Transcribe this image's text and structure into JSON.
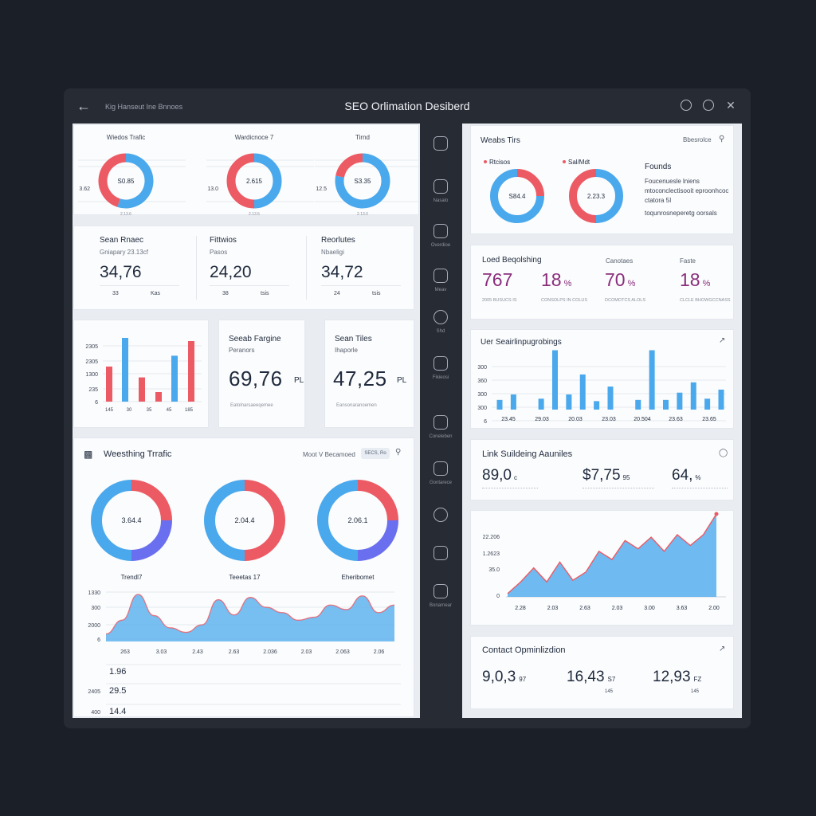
{
  "titlebar": {
    "breadcrumb": "Kig Hanseut Ine Bnnoes",
    "title": "SEO Orlimation Desiberd"
  },
  "colors": {
    "blue": "#4aa8ec",
    "red": "#ec5a64",
    "purple": "#6a6ff0",
    "magenta": "#8a2d7c"
  },
  "left": {
    "top_donuts": [
      {
        "label": "Wiedos Trafic",
        "center": "S0.85",
        "side": "3.62",
        "foot": "2.13.6",
        "blue": 0.55
      },
      {
        "label": "Wardicnoce 7",
        "center": "2.615",
        "side": "13.0",
        "foot": "2.13.5",
        "blue": 0.5
      },
      {
        "label": "Tirnd",
        "center": "S3.35",
        "side": "12.5",
        "foot": "2.13.0",
        "blue": 0.78
      }
    ],
    "metrics": [
      {
        "title": "Sean Rnaec",
        "sub": "Gniapary 23.13cf",
        "value": "34,76",
        "foot1": "33",
        "foot2": "Kas"
      },
      {
        "title": "Fittwios",
        "sub": "Pasos",
        "value": "24,20",
        "foot1": "38",
        "foot2": "tsis"
      },
      {
        "title": "Reorlutes",
        "sub": "Nbaeligi",
        "value": "34,72",
        "foot1": "24",
        "foot2": "tsis"
      }
    ],
    "bar_chart": {
      "y_ticks": [
        "2305",
        "2305",
        "1300",
        "235",
        "6"
      ],
      "x_ticks": [
        "145",
        "30",
        "35",
        "45",
        "185"
      ],
      "bars": [
        {
          "color": "red",
          "value": 0.55
        },
        {
          "color": "blue",
          "value": 1.0
        },
        {
          "color": "red",
          "value": 0.38
        },
        {
          "color": "red",
          "value": 0.15
        },
        {
          "color": "blue",
          "value": 0.72
        },
        {
          "color": "red",
          "value": 0.95
        }
      ]
    },
    "search_cards": [
      {
        "title": "Seeab Fargine",
        "sub": "Peranors",
        "value": "69,76",
        "unit": "PL",
        "foot": "Eatolnarsaeeqemee"
      },
      {
        "title": "Sean Tiles",
        "sub": "Ihaporle",
        "value": "47,25",
        "unit": "PL",
        "foot": "Eansonaranoemen"
      }
    ],
    "traffic": {
      "title": "Weesthing Trrafic",
      "filter_label": "Moot V Becamoed",
      "filter_value": "SECS, Ro",
      "donuts": [
        {
          "center": "3.64.4",
          "caption": "Trendl7"
        },
        {
          "center": "2.04.4",
          "caption": "Teeetas 17"
        },
        {
          "center": "2.06.1",
          "caption": "Eheribomet"
        }
      ],
      "area_y": [
        "1330",
        "300",
        "2000",
        "6"
      ],
      "area_x": [
        "263",
        "3.03",
        "2.43",
        "2.63",
        "2.036",
        "2.03",
        "2.063",
        "2.06"
      ],
      "area_values": [
        10,
        28,
        62,
        34,
        18,
        12,
        22,
        55,
        35,
        58,
        45,
        38,
        28,
        32,
        48,
        42,
        60,
        38,
        48
      ],
      "list": [
        {
          "left": "",
          "value": "1.96"
        },
        {
          "left": "2405",
          "value": "29.5"
        },
        {
          "left": "400",
          "value": "14.4"
        }
      ]
    }
  },
  "sidebar": [
    {
      "icon": "document-icon",
      "label": ""
    },
    {
      "icon": "cloud-icon",
      "label": "Nasalo"
    },
    {
      "icon": "link-icon",
      "label": "Overdioe"
    },
    {
      "icon": "chart-icon",
      "label": "Meav"
    },
    {
      "icon": "globe-icon",
      "label": "Shd"
    },
    {
      "icon": "tag-icon",
      "label": "Fikieosi"
    },
    {
      "icon": "tools-icon",
      "label": "Coneleben"
    },
    {
      "icon": "box-icon",
      "label": "Gontarece"
    },
    {
      "icon": "gear-icon",
      "label": ""
    },
    {
      "icon": "people-icon",
      "label": ""
    },
    {
      "icon": "stats-icon",
      "label": "Bonarnear"
    }
  ],
  "right": {
    "web_card": {
      "title": "Weabs Tirs",
      "action": "Bbesrolce",
      "donut1": {
        "label": "Rtcisos",
        "center": "S84.4",
        "blue": 0.72
      },
      "donut2": {
        "label": "Sal/Mdt",
        "center": "2.23.3",
        "blue": 0.5
      },
      "founds_title": "Founds",
      "founds_text": "Foucenuesle lniens mtoconclectisooit eproonhcoc ctatora 5I",
      "founds_text2": "toqunrosneperetg oorsals"
    },
    "load_card": {
      "title": "Loed Beqolshing",
      "col2": "Canotaes",
      "col3": "Faste",
      "values": [
        {
          "value": "767",
          "unit": "",
          "foot": "2005 BUSUCS IS"
        },
        {
          "value": "18",
          "unit": "%",
          "foot": "CONSOLPS IN COLUS"
        },
        {
          "value": "70",
          "unit": "%",
          "foot": "DCOMOTCS ALOLS"
        },
        {
          "value": "18",
          "unit": "%",
          "foot": "CLCLE BHOWGCCNASS"
        }
      ]
    },
    "user_card": {
      "title": "Uer Seairlinpugrobings",
      "y_ticks": [
        "300",
        "360",
        "300",
        "300",
        "6"
      ],
      "x_ticks": [
        "23.45",
        "29.03",
        "20.03",
        "23.03",
        "20.504",
        "23.63",
        "23.65"
      ],
      "bars": [
        0.16,
        0.25,
        0.0,
        0.18,
        0.98,
        0.25,
        0.58,
        0.14,
        0.38,
        0.0,
        0.16,
        0.98,
        0.16,
        0.28,
        0.45,
        0.18,
        0.33
      ]
    },
    "link_card": {
      "title": "Link Suildeing Aauniles",
      "values": [
        {
          "value": "89,0",
          "unit": "c"
        },
        {
          "value": "$7,75",
          "unit": "95"
        },
        {
          "value": "64,",
          "unit": "%"
        }
      ]
    },
    "growth_chart": {
      "y_ticks": [
        "22.206",
        "1.2623",
        "35.0",
        "0"
      ],
      "x_ticks": [
        "2.28",
        "2.03",
        "2.63",
        "2.03",
        "3.00",
        "3.63",
        "2.00"
      ],
      "values": [
        0.04,
        0.18,
        0.35,
        0.18,
        0.42,
        0.2,
        0.3,
        0.55,
        0.45,
        0.68,
        0.58,
        0.72,
        0.55,
        0.75,
        0.62,
        0.75,
        1.0
      ]
    },
    "content_card": {
      "title": "Contact Opminlizdion",
      "values": [
        {
          "value": "9,0,3",
          "unit": "97",
          "foot": ""
        },
        {
          "value": "16,43",
          "unit": "S7",
          "foot": "145"
        },
        {
          "value": "12,93",
          "unit": "FZ",
          "foot": "145"
        }
      ]
    }
  }
}
